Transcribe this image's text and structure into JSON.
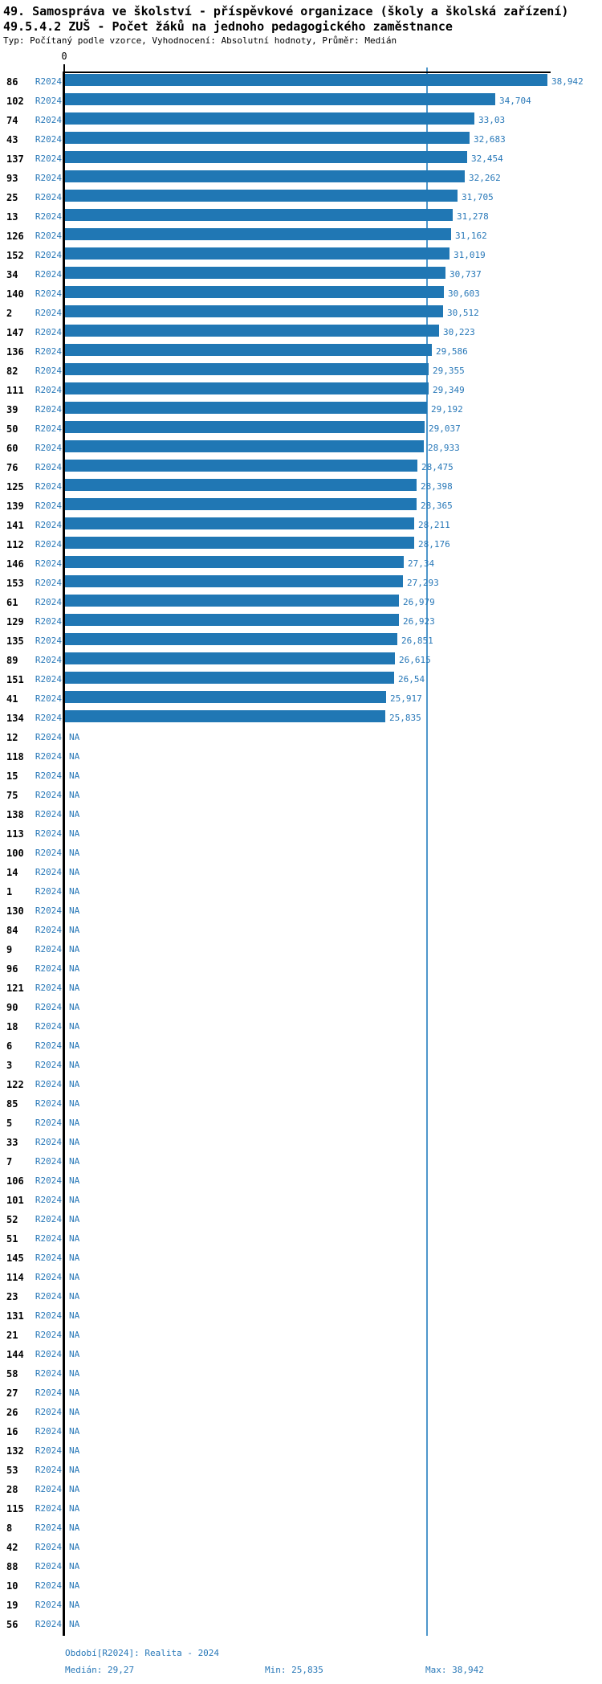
{
  "header": {
    "title_line1": "49. Samospráva ve školství - příspěvkové organizace (školy a školská zařízení)",
    "title_line2": "49.5.4.2 ZUŠ - Počet žáků na jednoho pedagogického zaměstnance",
    "subtitle": "Typ: Počítaný podle vzorce, Vyhodnocení: Absolutní hodnoty, Průměr: Medián"
  },
  "chart_data": {
    "type": "bar",
    "orientation": "horizontal",
    "title": "49.5.4.2 ZUŠ - Počet žáků na jednoho pedagogického zaměstnance",
    "period_label": "R2024",
    "axis_zero_label": "0",
    "na_label": "NA",
    "xlim": [
      0,
      38.942
    ],
    "median": 29.27,
    "min": 25.835,
    "max": 38.942,
    "legend_position": "none",
    "grid": false,
    "colors": {
      "bar": "#2077b4",
      "text_blue": "#2878b8",
      "median_line": "#4e97cb",
      "axis": "#000000",
      "row_id": "#000000"
    },
    "series": [
      {
        "id": "86",
        "value": 38.942,
        "label": "38,942"
      },
      {
        "id": "102",
        "value": 34.704,
        "label": "34,704"
      },
      {
        "id": "74",
        "value": 33.03,
        "label": "33,03"
      },
      {
        "id": "43",
        "value": 32.683,
        "label": "32,683"
      },
      {
        "id": "137",
        "value": 32.454,
        "label": "32,454"
      },
      {
        "id": "93",
        "value": 32.262,
        "label": "32,262"
      },
      {
        "id": "25",
        "value": 31.705,
        "label": "31,705"
      },
      {
        "id": "13",
        "value": 31.278,
        "label": "31,278"
      },
      {
        "id": "126",
        "value": 31.162,
        "label": "31,162"
      },
      {
        "id": "152",
        "value": 31.019,
        "label": "31,019"
      },
      {
        "id": "34",
        "value": 30.737,
        "label": "30,737"
      },
      {
        "id": "140",
        "value": 30.603,
        "label": "30,603"
      },
      {
        "id": "2",
        "value": 30.512,
        "label": "30,512"
      },
      {
        "id": "147",
        "value": 30.223,
        "label": "30,223"
      },
      {
        "id": "136",
        "value": 29.586,
        "label": "29,586"
      },
      {
        "id": "82",
        "value": 29.355,
        "label": "29,355"
      },
      {
        "id": "111",
        "value": 29.349,
        "label": "29,349"
      },
      {
        "id": "39",
        "value": 29.192,
        "label": "29,192"
      },
      {
        "id": "50",
        "value": 29.037,
        "label": "29,037"
      },
      {
        "id": "60",
        "value": 28.933,
        "label": "28,933"
      },
      {
        "id": "76",
        "value": 28.475,
        "label": "28,475"
      },
      {
        "id": "125",
        "value": 28.398,
        "label": "28,398"
      },
      {
        "id": "139",
        "value": 28.365,
        "label": "28,365"
      },
      {
        "id": "141",
        "value": 28.211,
        "label": "28,211"
      },
      {
        "id": "112",
        "value": 28.176,
        "label": "28,176"
      },
      {
        "id": "146",
        "value": 27.34,
        "label": "27,34"
      },
      {
        "id": "153",
        "value": 27.293,
        "label": "27,293"
      },
      {
        "id": "61",
        "value": 26.979,
        "label": "26,979"
      },
      {
        "id": "129",
        "value": 26.923,
        "label": "26,923"
      },
      {
        "id": "135",
        "value": 26.851,
        "label": "26,851"
      },
      {
        "id": "89",
        "value": 26.615,
        "label": "26,615"
      },
      {
        "id": "151",
        "value": 26.54,
        "label": "26,54"
      },
      {
        "id": "41",
        "value": 25.917,
        "label": "25,917"
      },
      {
        "id": "134",
        "value": 25.835,
        "label": "25,835"
      }
    ],
    "na_rows": [
      "12",
      "118",
      "15",
      "75",
      "138",
      "113",
      "100",
      "14",
      "1",
      "130",
      "84",
      "9",
      "96",
      "121",
      "90",
      "18",
      "6",
      "3",
      "122",
      "85",
      "5",
      "33",
      "7",
      "106",
      "101",
      "52",
      "51",
      "145",
      "114",
      "23",
      "131",
      "21",
      "144",
      "58",
      "27",
      "26",
      "16",
      "132",
      "53",
      "28",
      "115",
      "8",
      "42",
      "88",
      "10",
      "19",
      "56"
    ]
  },
  "footer": {
    "period": "Období[R2024]: Realita - 2024",
    "median": "Medián: 29,27",
    "min": "Min: 25,835",
    "max": "Max: 38,942"
  }
}
